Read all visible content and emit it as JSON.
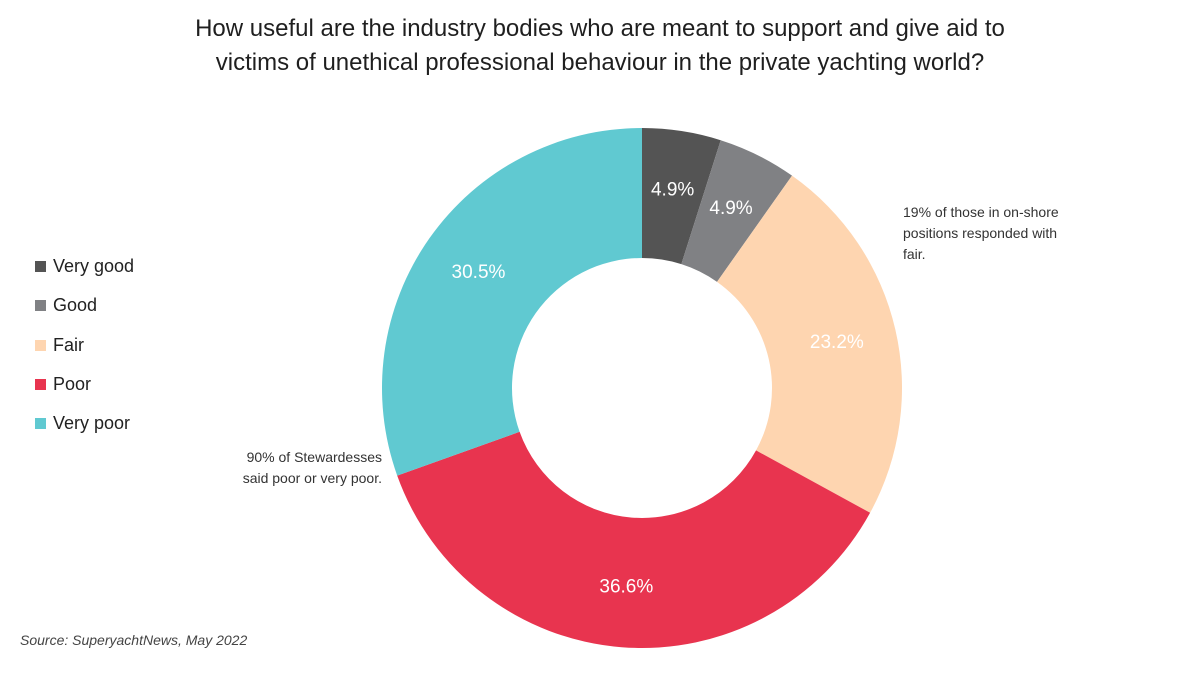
{
  "title_lines": [
    "How useful are the industry bodies who are meant to support and give aid to",
    "victims of unethical professional behaviour in the private yachting world?"
  ],
  "source": "Source: SuperyachtNews, May 2022",
  "annotations": {
    "right": [
      "19% of those in on-shore",
      "positions responded with",
      "fair."
    ],
    "left": [
      "90% of Stewardesses",
      "said poor or very poor."
    ]
  },
  "chart_data": {
    "type": "pie",
    "variant": "donut",
    "title": "How useful are the industry bodies who are meant to support and give aid to victims of unethical professional behaviour in the private yachting world?",
    "categories": [
      "Very good",
      "Good",
      "Fair",
      "Poor",
      "Very poor"
    ],
    "values": [
      4.9,
      4.9,
      23.2,
      36.6,
      30.5
    ],
    "labels": [
      "4.9%",
      "4.9%",
      "23.2%",
      "36.6%",
      "30.5%"
    ],
    "colors": [
      "#545454",
      "#808184",
      "#fed5b0",
      "#e8344f",
      "#60c9d1"
    ],
    "legend_placement": "left"
  }
}
